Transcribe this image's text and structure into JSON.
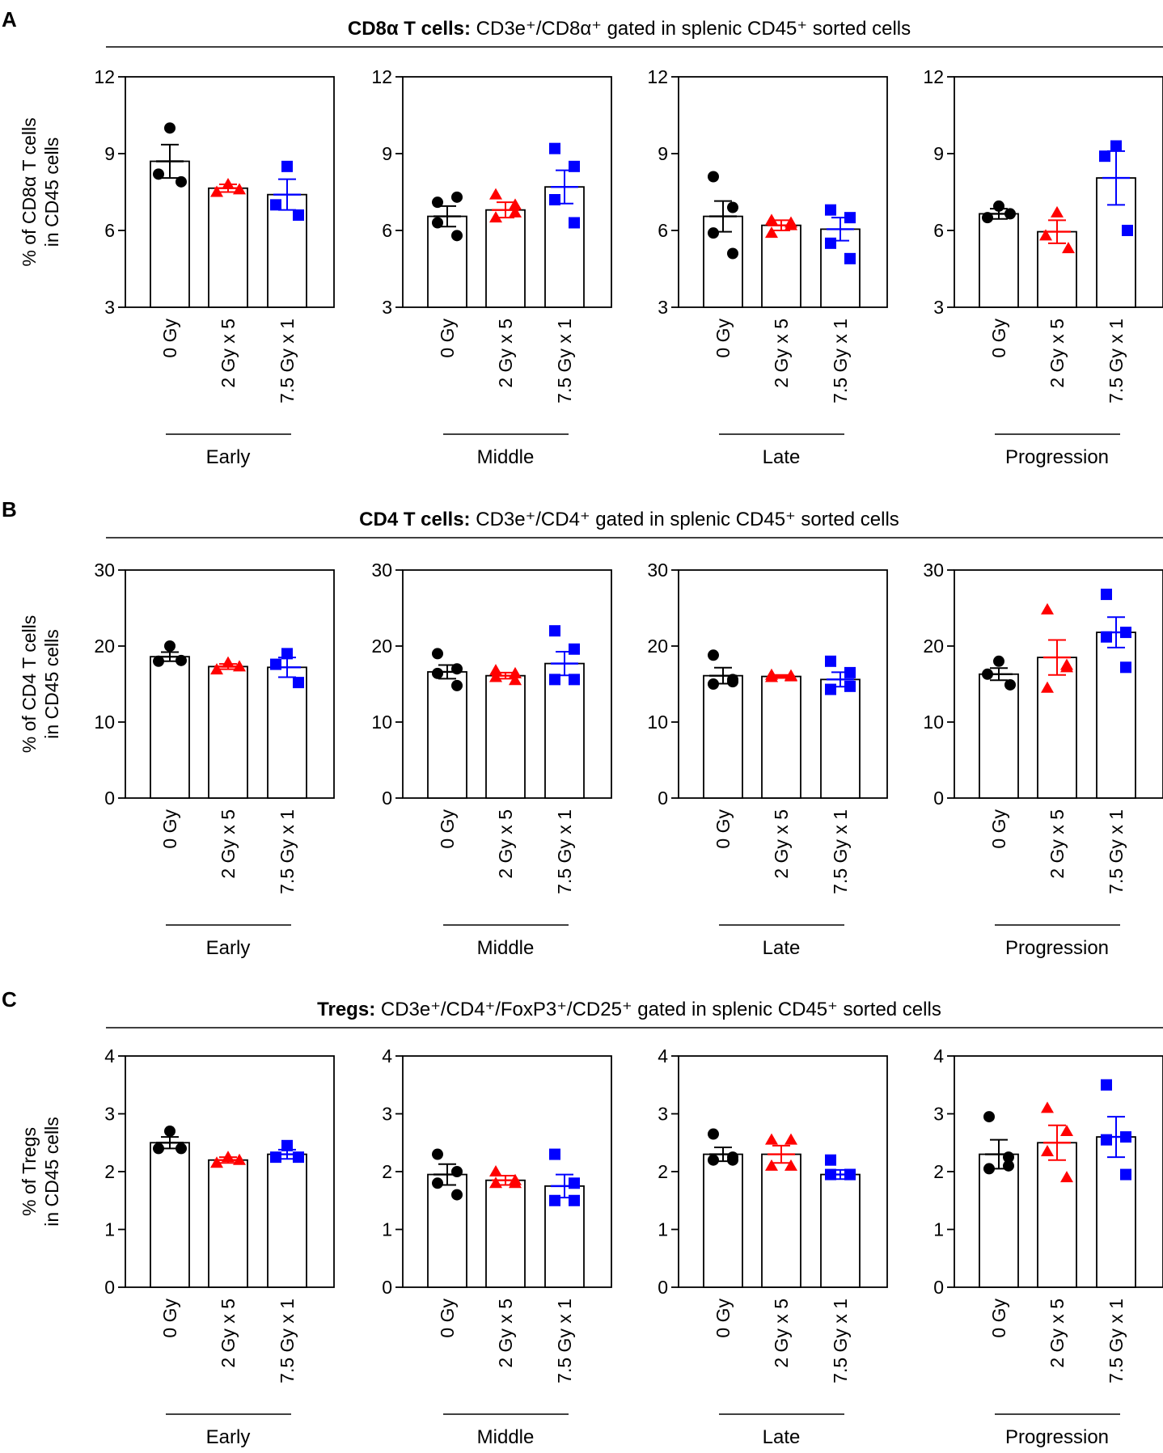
{
  "figure": {
    "panels": [
      {
        "letter": "A",
        "title_bold": "CD8α T cells:",
        "title_rest": " CD3e⁺/CD8α⁺ gated in splenic CD45⁺ sorted cells",
        "ylabel": [
          "% of CD8α T cells",
          "in CD45 cells"
        ]
      },
      {
        "letter": "B",
        "title_bold": "CD4 T cells:",
        "title_rest": " CD3e⁺/CD4⁺ gated in splenic CD45⁺ sorted cells",
        "ylabel": [
          "% of CD4 T cells",
          "in CD45 cells"
        ]
      },
      {
        "letter": "C",
        "title_bold": "Tregs:",
        "title_rest": " CD3e⁺/CD4⁺/FoxP3⁺/CD25⁺ gated in splenic CD45⁺ sorted cells",
        "ylabel": [
          "% of Tregs",
          "in CD45 cells"
        ]
      }
    ]
  },
  "colors": {
    "0 Gy": "#000000",
    "2 Gy x 5": "#ff0000",
    "7.5 Gy x 1": "#0000ff"
  },
  "chart_data": [
    {
      "type": "bar",
      "panel": "A",
      "title": "Early",
      "categories": [
        "0 Gy",
        "2 Gy x 5",
        "7.5 Gy x 1"
      ],
      "ylim": [
        3,
        12
      ],
      "yticks": [
        3,
        6,
        9,
        12
      ],
      "series": [
        {
          "name": "0 Gy",
          "marker": "circle",
          "mean": 8.7,
          "sem": 0.65,
          "points": [
            10.0,
            8.2,
            7.9
          ]
        },
        {
          "name": "2 Gy x 5",
          "marker": "triangle",
          "mean": 7.65,
          "sem": 0.15,
          "points": [
            7.8,
            7.5,
            7.6
          ]
        },
        {
          "name": "7.5 Gy x 1",
          "marker": "square",
          "mean": 7.4,
          "sem": 0.6,
          "points": [
            8.5,
            7.0,
            6.6
          ]
        }
      ]
    },
    {
      "type": "bar",
      "panel": "A",
      "title": "Middle",
      "categories": [
        "0 Gy",
        "2 Gy x 5",
        "7.5 Gy x 1"
      ],
      "ylim": [
        3,
        12
      ],
      "yticks": [
        3,
        6,
        9,
        12
      ],
      "series": [
        {
          "name": "0 Gy",
          "marker": "circle",
          "mean": 6.55,
          "sem": 0.4,
          "points": [
            7.1,
            7.3,
            6.3,
            5.8
          ]
        },
        {
          "name": "2 Gy x 5",
          "marker": "triangle",
          "mean": 6.8,
          "sem": 0.3,
          "points": [
            7.4,
            7.0,
            6.5,
            6.7
          ]
        },
        {
          "name": "7.5 Gy x 1",
          "marker": "square",
          "mean": 7.7,
          "sem": 0.65,
          "points": [
            9.2,
            8.5,
            7.2,
            6.3
          ]
        }
      ]
    },
    {
      "type": "bar",
      "panel": "A",
      "title": "Late",
      "categories": [
        "0 Gy",
        "2 Gy x 5",
        "7.5 Gy x 1"
      ],
      "ylim": [
        3,
        12
      ],
      "yticks": [
        3,
        6,
        9,
        12
      ],
      "series": [
        {
          "name": "0 Gy",
          "marker": "circle",
          "mean": 6.55,
          "sem": 0.6,
          "points": [
            8.1,
            6.9,
            5.9,
            5.1
          ]
        },
        {
          "name": "2 Gy x 5",
          "marker": "triangle",
          "mean": 6.2,
          "sem": 0.2,
          "points": [
            6.4,
            6.2,
            5.9,
            6.3
          ]
        },
        {
          "name": "7.5 Gy x 1",
          "marker": "square",
          "mean": 6.05,
          "sem": 0.45,
          "points": [
            6.8,
            6.5,
            5.5,
            4.9
          ]
        }
      ]
    },
    {
      "type": "bar",
      "panel": "A",
      "title": "Progression",
      "categories": [
        "0 Gy",
        "2 Gy x 5",
        "7.5 Gy x 1"
      ],
      "ylim": [
        3,
        12
      ],
      "yticks": [
        3,
        6,
        9,
        12
      ],
      "series": [
        {
          "name": "0 Gy",
          "marker": "circle",
          "mean": 6.65,
          "sem": 0.2,
          "points": [
            6.95,
            6.5,
            6.65
          ]
        },
        {
          "name": "2 Gy x 5",
          "marker": "triangle",
          "mean": 5.95,
          "sem": 0.45,
          "points": [
            6.7,
            5.8,
            5.3
          ]
        },
        {
          "name": "7.5 Gy x 1",
          "marker": "square",
          "mean": 8.05,
          "sem": 1.05,
          "points": [
            9.3,
            8.9,
            6.0
          ]
        }
      ]
    },
    {
      "type": "bar",
      "panel": "B",
      "title": "Early",
      "categories": [
        "0 Gy",
        "2 Gy x 5",
        "7.5 Gy x 1"
      ],
      "ylim": [
        0,
        30
      ],
      "yticks": [
        0,
        10,
        20,
        30
      ],
      "series": [
        {
          "name": "0 Gy",
          "marker": "circle",
          "mean": 18.6,
          "sem": 0.6,
          "points": [
            20.0,
            18.0,
            18.1
          ]
        },
        {
          "name": "2 Gy x 5",
          "marker": "triangle",
          "mean": 17.3,
          "sem": 0.35,
          "points": [
            17.8,
            16.9,
            17.3
          ]
        },
        {
          "name": "7.5 Gy x 1",
          "marker": "square",
          "mean": 17.2,
          "sem": 1.3,
          "points": [
            19.0,
            17.6,
            15.2
          ]
        }
      ]
    },
    {
      "type": "bar",
      "panel": "B",
      "title": "Middle",
      "categories": [
        "0 Gy",
        "2 Gy x 5",
        "7.5 Gy x 1"
      ],
      "ylim": [
        0,
        30
      ],
      "yticks": [
        0,
        10,
        20,
        30
      ],
      "series": [
        {
          "name": "0 Gy",
          "marker": "circle",
          "mean": 16.6,
          "sem": 0.9,
          "points": [
            19.0,
            17.0,
            16.4,
            14.8
          ]
        },
        {
          "name": "2 Gy x 5",
          "marker": "triangle",
          "mean": 16.1,
          "sem": 0.4,
          "points": [
            16.8,
            16.4,
            15.9,
            15.5
          ]
        },
        {
          "name": "7.5 Gy x 1",
          "marker": "square",
          "mean": 17.7,
          "sem": 1.55,
          "points": [
            22.0,
            19.6,
            15.6,
            15.6
          ]
        }
      ]
    },
    {
      "type": "bar",
      "panel": "B",
      "title": "Late",
      "categories": [
        "0 Gy",
        "2 Gy x 5",
        "7.5 Gy x 1"
      ],
      "ylim": [
        0,
        30
      ],
      "yticks": [
        0,
        10,
        20,
        30
      ],
      "series": [
        {
          "name": "0 Gy",
          "marker": "circle",
          "mean": 16.1,
          "sem": 1.05,
          "points": [
            18.8,
            15.6,
            15.0,
            15.3
          ]
        },
        {
          "name": "2 Gy x 5",
          "marker": "triangle",
          "mean": 16.0,
          "sem": 0.2,
          "points": [
            16.2,
            16.0,
            15.9,
            16.1
          ]
        },
        {
          "name": "7.5 Gy x 1",
          "marker": "square",
          "mean": 15.6,
          "sem": 0.95,
          "points": [
            18.0,
            16.5,
            14.3,
            14.7
          ]
        }
      ]
    },
    {
      "type": "bar",
      "panel": "B",
      "title": "Progression",
      "categories": [
        "0 Gy",
        "2 Gy x 5",
        "7.5 Gy x 1"
      ],
      "ylim": [
        0,
        30
      ],
      "yticks": [
        0,
        10,
        20,
        30
      ],
      "series": [
        {
          "name": "0 Gy",
          "marker": "circle",
          "mean": 16.3,
          "sem": 0.8,
          "points": [
            18.0,
            16.3,
            14.9
          ]
        },
        {
          "name": "2 Gy x 5",
          "marker": "triangle",
          "mean": 18.5,
          "sem": 2.3,
          "points": [
            24.8,
            17.5,
            14.5,
            17.2
          ]
        },
        {
          "name": "7.5 Gy x 1",
          "marker": "square",
          "mean": 21.8,
          "sem": 2.0,
          "points": [
            26.8,
            21.8,
            21.2,
            17.2
          ]
        }
      ]
    },
    {
      "type": "bar",
      "panel": "C",
      "title": "Early",
      "categories": [
        "0 Gy",
        "2 Gy x 5",
        "7.5 Gy x 1"
      ],
      "ylim": [
        0,
        4
      ],
      "yticks": [
        0,
        1,
        2,
        3,
        4
      ],
      "series": [
        {
          "name": "0 Gy",
          "marker": "circle",
          "mean": 2.5,
          "sem": 0.1,
          "points": [
            2.7,
            2.4,
            2.4
          ]
        },
        {
          "name": "2 Gy x 5",
          "marker": "triangle",
          "mean": 2.2,
          "sem": 0.05,
          "points": [
            2.25,
            2.15,
            2.2
          ]
        },
        {
          "name": "7.5 Gy x 1",
          "marker": "square",
          "mean": 2.3,
          "sem": 0.08,
          "points": [
            2.45,
            2.25,
            2.25
          ]
        }
      ]
    },
    {
      "type": "bar",
      "panel": "C",
      "title": "Middle",
      "categories": [
        "0 Gy",
        "2 Gy x 5",
        "7.5 Gy x 1"
      ],
      "ylim": [
        0,
        4
      ],
      "yticks": [
        0,
        1,
        2,
        3,
        4
      ],
      "series": [
        {
          "name": "0 Gy",
          "marker": "circle",
          "mean": 1.95,
          "sem": 0.18,
          "points": [
            2.3,
            2.0,
            1.8,
            1.6
          ]
        },
        {
          "name": "2 Gy x 5",
          "marker": "triangle",
          "mean": 1.85,
          "sem": 0.08,
          "points": [
            2.0,
            1.85,
            1.8,
            1.8
          ]
        },
        {
          "name": "7.5 Gy x 1",
          "marker": "square",
          "mean": 1.75,
          "sem": 0.2,
          "points": [
            2.3,
            1.8,
            1.5,
            1.5
          ]
        }
      ]
    },
    {
      "type": "bar",
      "panel": "C",
      "title": "Late",
      "categories": [
        "0 Gy",
        "2 Gy x 5",
        "7.5 Gy x 1"
      ],
      "ylim": [
        0,
        4
      ],
      "yticks": [
        0,
        1,
        2,
        3,
        4
      ],
      "series": [
        {
          "name": "0 Gy",
          "marker": "circle",
          "mean": 2.3,
          "sem": 0.12,
          "points": [
            2.65,
            2.2,
            2.2,
            2.25
          ]
        },
        {
          "name": "2 Gy x 5",
          "marker": "triangle",
          "mean": 2.3,
          "sem": 0.15,
          "points": [
            2.55,
            2.55,
            2.1,
            2.1
          ]
        },
        {
          "name": "7.5 Gy x 1",
          "marker": "square",
          "mean": 1.95,
          "sem": 0.08,
          "points": [
            2.2,
            1.95,
            1.95,
            1.95
          ]
        }
      ]
    },
    {
      "type": "bar",
      "panel": "C",
      "title": "Progression",
      "categories": [
        "0 Gy",
        "2 Gy x 5",
        "7.5 Gy x 1"
      ],
      "ylim": [
        0,
        4
      ],
      "yticks": [
        0,
        1,
        2,
        3,
        4
      ],
      "series": [
        {
          "name": "0 Gy",
          "marker": "circle",
          "mean": 2.3,
          "sem": 0.25,
          "points": [
            2.95,
            2.25,
            2.05,
            2.1
          ]
        },
        {
          "name": "2 Gy x 5",
          "marker": "triangle",
          "mean": 2.5,
          "sem": 0.3,
          "points": [
            3.1,
            2.7,
            2.35,
            1.9
          ]
        },
        {
          "name": "7.5 Gy x 1",
          "marker": "square",
          "mean": 2.6,
          "sem": 0.35,
          "points": [
            3.5,
            2.6,
            2.55,
            1.95
          ]
        }
      ]
    }
  ]
}
